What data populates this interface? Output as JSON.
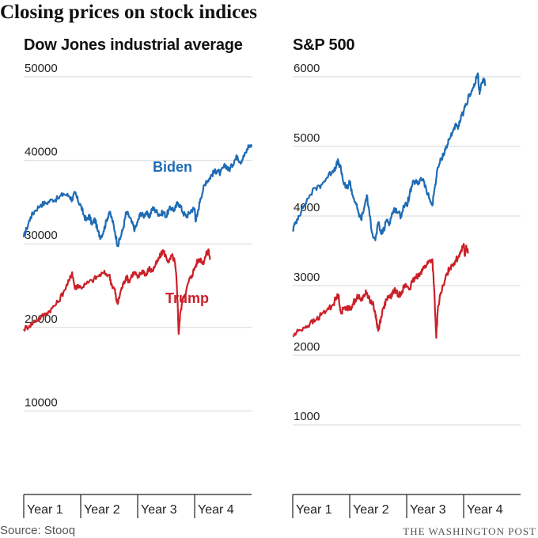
{
  "title": "Closing prices on stock indices",
  "source": "Source: Stooq",
  "credit": "THE WASHINGTON POST",
  "colors": {
    "biden": "#1f6bb4",
    "trump": "#cc2029",
    "grid": "#d6d6d6",
    "axis": "#222222"
  },
  "chart_data": [
    {
      "type": "line",
      "title": "Dow Jones industrial average",
      "ylim": [
        0,
        50000
      ],
      "yticks": [
        10000,
        20000,
        30000,
        40000,
        50000
      ],
      "ytick_labels": [
        "10000",
        "20000",
        "30000",
        "40000",
        "50000"
      ],
      "xlim": [
        0,
        4
      ],
      "xticks": [
        0,
        1,
        2,
        3
      ],
      "x_labels": [
        "Year 1",
        "Year 2",
        "Year 3",
        "Year 4"
      ],
      "grid": true,
      "series": [
        {
          "name": "Biden",
          "color": "#1f6bb4",
          "label_at": [
            2.0,
            38700
          ],
          "points": [
            [
              0,
              30800
            ],
            [
              0.05,
              31800
            ],
            [
              0.12,
              33200
            ],
            [
              0.2,
              34000
            ],
            [
              0.3,
              34700
            ],
            [
              0.4,
              34900
            ],
            [
              0.5,
              35300
            ],
            [
              0.6,
              35400
            ],
            [
              0.7,
              36000
            ],
            [
              0.8,
              35700
            ],
            [
              0.85,
              35300
            ],
            [
              0.9,
              36100
            ],
            [
              0.95,
              35200
            ],
            [
              1.0,
              34600
            ],
            [
              1.05,
              33500
            ],
            [
              1.1,
              32800
            ],
            [
              1.15,
              33400
            ],
            [
              1.2,
              32300
            ],
            [
              1.25,
              33000
            ],
            [
              1.3,
              31500
            ],
            [
              1.35,
              30800
            ],
            [
              1.4,
              31500
            ],
            [
              1.45,
              32700
            ],
            [
              1.5,
              33800
            ],
            [
              1.55,
              33000
            ],
            [
              1.6,
              31500
            ],
            [
              1.65,
              29800
            ],
            [
              1.7,
              30800
            ],
            [
              1.75,
              32000
            ],
            [
              1.8,
              33800
            ],
            [
              1.85,
              33300
            ],
            [
              1.9,
              32500
            ],
            [
              1.95,
              31700
            ],
            [
              2.0,
              32600
            ],
            [
              2.05,
              33700
            ],
            [
              2.1,
              33300
            ],
            [
              2.15,
              33800
            ],
            [
              2.2,
              33100
            ],
            [
              2.25,
              34200
            ],
            [
              2.3,
              34100
            ],
            [
              2.35,
              33700
            ],
            [
              2.4,
              33500
            ],
            [
              2.45,
              33800
            ],
            [
              2.5,
              33300
            ],
            [
              2.55,
              34100
            ],
            [
              2.6,
              34300
            ],
            [
              2.65,
              34000
            ],
            [
              2.7,
              35000
            ],
            [
              2.75,
              34500
            ],
            [
              2.8,
              33700
            ],
            [
              2.85,
              33300
            ],
            [
              2.9,
              33600
            ],
            [
              2.95,
              34100
            ],
            [
              3.0,
              34200
            ],
            [
              3.02,
              32700
            ],
            [
              3.05,
              33500
            ],
            [
              3.1,
              35400
            ],
            [
              3.15,
              36500
            ],
            [
              3.2,
              37500
            ],
            [
              3.25,
              37700
            ],
            [
              3.3,
              38300
            ],
            [
              3.35,
              38600
            ],
            [
              3.4,
              38800
            ],
            [
              3.45,
              38400
            ],
            [
              3.5,
              39100
            ],
            [
              3.55,
              39400
            ],
            [
              3.6,
              38800
            ],
            [
              3.65,
              39300
            ],
            [
              3.7,
              40000
            ],
            [
              3.75,
              40500
            ],
            [
              3.8,
              39800
            ],
            [
              3.85,
              40300
            ],
            [
              3.9,
              40900
            ],
            [
              3.95,
              41800
            ],
            [
              4.0,
              41600
            ]
          ]
        },
        {
          "name": "Trump",
          "color": "#cc2029",
          "label_at": [
            2.3,
            22500
          ],
          "points": [
            [
              0,
              19800
            ],
            [
              0.1,
              20200
            ],
            [
              0.2,
              20800
            ],
            [
              0.3,
              21200
            ],
            [
              0.4,
              21700
            ],
            [
              0.5,
              22300
            ],
            [
              0.6,
              23000
            ],
            [
              0.7,
              24300
            ],
            [
              0.8,
              25600
            ],
            [
              0.85,
              26600
            ],
            [
              0.9,
              24600
            ],
            [
              0.95,
              25100
            ],
            [
              1.0,
              24800
            ],
            [
              1.1,
              25200
            ],
            [
              1.2,
              25600
            ],
            [
              1.3,
              26100
            ],
            [
              1.4,
              26500
            ],
            [
              1.5,
              26300
            ],
            [
              1.55,
              25000
            ],
            [
              1.6,
              24500
            ],
            [
              1.62,
              23500
            ],
            [
              1.65,
              22800
            ],
            [
              1.7,
              24300
            ],
            [
              1.75,
              25200
            ],
            [
              1.8,
              26100
            ],
            [
              1.85,
              25500
            ],
            [
              1.9,
              26300
            ],
            [
              1.95,
              26600
            ],
            [
              2.0,
              25900
            ],
            [
              2.05,
              26500
            ],
            [
              2.1,
              26800
            ],
            [
              2.15,
              26200
            ],
            [
              2.2,
              27100
            ],
            [
              2.25,
              26700
            ],
            [
              2.3,
              27300
            ],
            [
              2.35,
              27900
            ],
            [
              2.4,
              28600
            ],
            [
              2.45,
              29200
            ],
            [
              2.5,
              28400
            ],
            [
              2.55,
              27800
            ],
            [
              2.6,
              28600
            ],
            [
              2.65,
              27900
            ],
            [
              2.68,
              25900
            ],
            [
              2.7,
              23200
            ],
            [
              2.72,
              19200
            ],
            [
              2.75,
              21800
            ],
            [
              2.8,
              23700
            ],
            [
              2.85,
              24300
            ],
            [
              2.9,
              25600
            ],
            [
              2.95,
              26200
            ],
            [
              3.0,
              27100
            ],
            [
              3.05,
              27900
            ],
            [
              3.1,
              28200
            ],
            [
              3.15,
              27700
            ],
            [
              3.2,
              28700
            ],
            [
              3.25,
              29200
            ],
            [
              3.27,
              28100
            ]
          ]
        }
      ]
    },
    {
      "type": "line",
      "title": "S&P 500",
      "ylim": [
        0,
        6000
      ],
      "yticks": [
        1000,
        2000,
        3000,
        4000,
        5000,
        6000
      ],
      "ytick_labels": [
        "1000",
        "2000",
        "3000",
        "4000",
        "5000",
        "6000"
      ],
      "xlim": [
        0,
        4
      ],
      "xticks": [
        0,
        1,
        2,
        3
      ],
      "x_labels": [
        "Year 1",
        "Year 2",
        "Year 3",
        "Year 4"
      ],
      "grid": true,
      "series": [
        {
          "name": "Biden",
          "color": "#1f6bb4",
          "points": [
            [
              0,
              3800
            ],
            [
              0.05,
              3900
            ],
            [
              0.1,
              4000
            ],
            [
              0.2,
              4150
            ],
            [
              0.3,
              4300
            ],
            [
              0.4,
              4400
            ],
            [
              0.5,
              4450
            ],
            [
              0.6,
              4550
            ],
            [
              0.7,
              4650
            ],
            [
              0.75,
              4700
            ],
            [
              0.8,
              4790
            ],
            [
              0.85,
              4650
            ],
            [
              0.9,
              4450
            ],
            [
              0.95,
              4400
            ],
            [
              1.0,
              4500
            ],
            [
              1.05,
              4300
            ],
            [
              1.1,
              4200
            ],
            [
              1.15,
              4050
            ],
            [
              1.2,
              3950
            ],
            [
              1.25,
              4100
            ],
            [
              1.3,
              4300
            ],
            [
              1.35,
              4000
            ],
            [
              1.4,
              3750
            ],
            [
              1.45,
              3650
            ],
            [
              1.5,
              3900
            ],
            [
              1.55,
              3750
            ],
            [
              1.6,
              3800
            ],
            [
              1.65,
              3950
            ],
            [
              1.7,
              3900
            ],
            [
              1.75,
              4050
            ],
            [
              1.8,
              4100
            ],
            [
              1.85,
              4050
            ],
            [
              1.9,
              4000
            ],
            [
              1.95,
              4150
            ],
            [
              2.0,
              4150
            ],
            [
              2.05,
              4300
            ],
            [
              2.1,
              4450
            ],
            [
              2.15,
              4500
            ],
            [
              2.2,
              4450
            ],
            [
              2.25,
              4550
            ],
            [
              2.3,
              4500
            ],
            [
              2.35,
              4350
            ],
            [
              2.4,
              4250
            ],
            [
              2.45,
              4150
            ],
            [
              2.5,
              4450
            ],
            [
              2.55,
              4700
            ],
            [
              2.6,
              4800
            ],
            [
              2.65,
              4900
            ],
            [
              2.7,
              5000
            ],
            [
              2.75,
              5100
            ],
            [
              2.8,
              5200
            ],
            [
              2.85,
              5300
            ],
            [
              2.9,
              5250
            ],
            [
              2.95,
              5400
            ],
            [
              3.0,
              5500
            ],
            [
              3.05,
              5600
            ],
            [
              3.1,
              5750
            ],
            [
              3.15,
              5800
            ],
            [
              3.2,
              5900
            ],
            [
              3.25,
              6050
            ],
            [
              3.28,
              5750
            ],
            [
              3.3,
              5850
            ],
            [
              3.35,
              5950
            ],
            [
              3.38,
              5900
            ]
          ]
        },
        {
          "name": "Trump",
          "color": "#cc2029",
          "points": [
            [
              0,
              2270
            ],
            [
              0.1,
              2350
            ],
            [
              0.2,
              2400
            ],
            [
              0.3,
              2450
            ],
            [
              0.4,
              2500
            ],
            [
              0.5,
              2580
            ],
            [
              0.6,
              2650
            ],
            [
              0.7,
              2720
            ],
            [
              0.75,
              2800
            ],
            [
              0.8,
              2870
            ],
            [
              0.85,
              2600
            ],
            [
              0.9,
              2680
            ],
            [
              0.95,
              2700
            ],
            [
              1.0,
              2650
            ],
            [
              1.05,
              2730
            ],
            [
              1.1,
              2800
            ],
            [
              1.15,
              2850
            ],
            [
              1.2,
              2780
            ],
            [
              1.25,
              2870
            ],
            [
              1.3,
              2900
            ],
            [
              1.35,
              2800
            ],
            [
              1.4,
              2750
            ],
            [
              1.45,
              2600
            ],
            [
              1.48,
              2450
            ],
            [
              1.5,
              2350
            ],
            [
              1.55,
              2550
            ],
            [
              1.6,
              2700
            ],
            [
              1.65,
              2800
            ],
            [
              1.7,
              2830
            ],
            [
              1.75,
              2880
            ],
            [
              1.8,
              2950
            ],
            [
              1.85,
              2850
            ],
            [
              1.9,
              2900
            ],
            [
              1.95,
              2980
            ],
            [
              2.0,
              3000
            ],
            [
              2.05,
              2950
            ],
            [
              2.1,
              3050
            ],
            [
              2.15,
              3100
            ],
            [
              2.2,
              3150
            ],
            [
              2.25,
              3200
            ],
            [
              2.3,
              3250
            ],
            [
              2.35,
              3300
            ],
            [
              2.4,
              3350
            ],
            [
              2.45,
              3380
            ],
            [
              2.48,
              3000
            ],
            [
              2.5,
              2600
            ],
            [
              2.52,
              2250
            ],
            [
              2.55,
              2700
            ],
            [
              2.6,
              2900
            ],
            [
              2.65,
              3000
            ],
            [
              2.7,
              3150
            ],
            [
              2.75,
              3250
            ],
            [
              2.8,
              3300
            ],
            [
              2.85,
              3350
            ],
            [
              2.9,
              3400
            ],
            [
              2.95,
              3500
            ],
            [
              3.0,
              3600
            ],
            [
              3.02,
              3450
            ],
            [
              3.05,
              3550
            ],
            [
              3.08,
              3480
            ]
          ]
        }
      ]
    }
  ]
}
